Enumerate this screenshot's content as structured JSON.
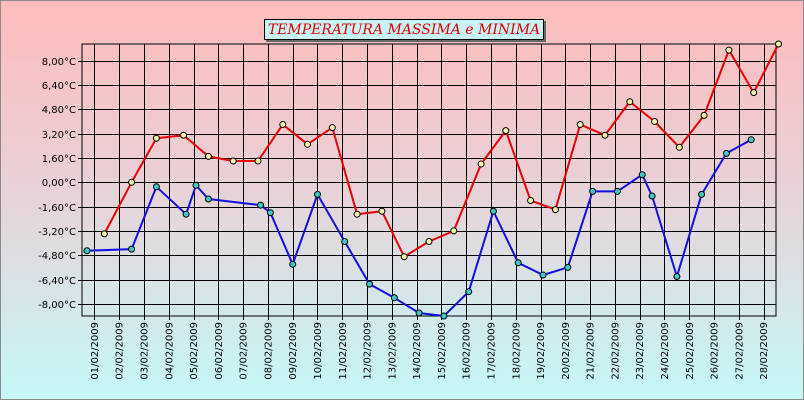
{
  "chart_data": {
    "type": "line",
    "title": "TEMPERATURA MASSIMA e MINIMA",
    "xlabel": "",
    "ylabel": "",
    "ylim": [
      -8.8,
      9.1
    ],
    "grid": true,
    "legend": "none",
    "y_ticks": [
      "8,00°C",
      "6,40°C",
      "4,80°C",
      "3,20°C",
      "1,60°C",
      "0,00°C",
      "-1,60°C",
      "-3,20°C",
      "-4,80°C",
      "-6,40°C",
      "-8,00°C"
    ],
    "y_tick_values": [
      8.0,
      6.4,
      4.8,
      3.2,
      1.6,
      0.0,
      -1.6,
      -3.2,
      -4.8,
      -6.4,
      -8.0
    ],
    "categories": [
      "01/02/2009",
      "02/02/2009",
      "03/02/2009",
      "04/02/2009",
      "05/02/2009",
      "06/02/2009",
      "07/02/2009",
      "08/02/2009",
      "09/02/2009",
      "10/02/2009",
      "11/02/2009",
      "12/02/2009",
      "13/02/2009",
      "14/02/2009",
      "15/02/2009",
      "16/02/2009",
      "17/02/2009",
      "18/02/2009",
      "19/02/2009",
      "20/02/2009",
      "21/02/2009",
      "22/02/2009",
      "23/02/2009",
      "24/02/2009",
      "25/02/2009",
      "26/02/2009",
      "27/02/2009",
      "28/02/2009"
    ],
    "series": [
      {
        "color": "#e80000",
        "marker_color": "#f7f3a8",
        "points": [
          [
            0.4,
            -3.4
          ],
          [
            1.5,
            0.0
          ],
          [
            2.5,
            2.9
          ],
          [
            3.6,
            3.1
          ],
          [
            4.6,
            1.7
          ],
          [
            5.6,
            1.4
          ],
          [
            6.6,
            1.4
          ],
          [
            7.6,
            3.8
          ],
          [
            8.6,
            2.5
          ],
          [
            9.6,
            3.6
          ],
          [
            10.6,
            -2.1
          ],
          [
            11.6,
            -1.9
          ],
          [
            12.5,
            -4.9
          ],
          [
            13.5,
            -3.9
          ],
          [
            14.5,
            -3.2
          ],
          [
            15.6,
            1.2
          ],
          [
            16.6,
            3.4
          ],
          [
            17.6,
            -1.2
          ],
          [
            18.6,
            -1.8
          ],
          [
            19.6,
            3.8
          ],
          [
            20.6,
            3.1
          ],
          [
            21.6,
            5.3
          ],
          [
            22.6,
            4.0
          ],
          [
            23.6,
            2.3
          ],
          [
            24.6,
            4.4
          ],
          [
            25.6,
            8.7
          ],
          [
            26.6,
            5.9
          ],
          [
            27.6,
            9.1
          ]
        ]
      },
      {
        "color": "#1010e0",
        "marker_color": "#3ec8c8",
        "points": [
          [
            -0.3,
            -4.5
          ],
          [
            1.5,
            -4.4
          ],
          [
            2.5,
            -0.3
          ],
          [
            3.7,
            -2.1
          ],
          [
            4.1,
            -0.2
          ],
          [
            4.6,
            -1.1
          ],
          [
            6.7,
            -1.5
          ],
          [
            7.1,
            -2.0
          ],
          [
            8.0,
            -5.4
          ],
          [
            9.0,
            -0.8
          ],
          [
            10.1,
            -3.9
          ],
          [
            11.1,
            -6.7
          ],
          [
            12.1,
            -7.6
          ],
          [
            13.1,
            -8.6
          ],
          [
            14.1,
            -8.8
          ],
          [
            15.1,
            -7.2
          ],
          [
            16.1,
            -1.9
          ],
          [
            17.1,
            -5.3
          ],
          [
            18.1,
            -6.1
          ],
          [
            19.1,
            -5.6
          ],
          [
            20.1,
            -0.6
          ],
          [
            21.1,
            -0.6
          ],
          [
            22.1,
            0.5
          ],
          [
            22.5,
            -0.9
          ],
          [
            23.5,
            -6.2
          ],
          [
            24.5,
            -0.8
          ],
          [
            25.5,
            1.9
          ],
          [
            26.5,
            2.8
          ]
        ]
      }
    ]
  }
}
